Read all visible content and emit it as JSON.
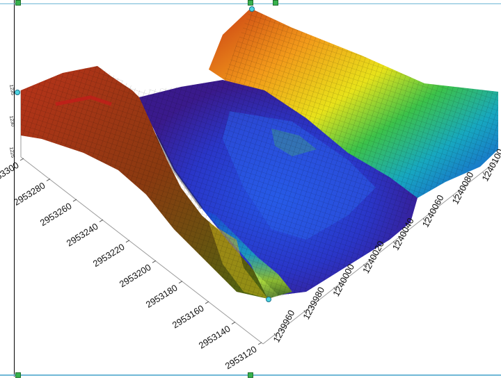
{
  "chart_data": {
    "type": "surface3d",
    "title": "",
    "xlabel": "",
    "ylabel": "",
    "zlabel": "",
    "x_ticks": [
      "1239960",
      "1239980",
      "1240000",
      "1240020",
      "1240040",
      "1240060",
      "1240080",
      "1240100"
    ],
    "y_ticks": [
      "2953120",
      "2953140",
      "2953160",
      "2953180",
      "2953200",
      "2953220",
      "2953240",
      "2953260",
      "2953280",
      "2953300"
    ],
    "z_ticks": [
      "1235",
      "1230",
      "1225"
    ],
    "colormap": [
      "#3a1a8c",
      "#2a3fd6",
      "#1a6fe0",
      "#17a7c0",
      "#3cc24a",
      "#b9e21a",
      "#f2e21a",
      "#f29a1a",
      "#e0501a",
      "#b8321a"
    ],
    "description_of_surface": "open-pit excavation: deep blue floor, rising walls through green/yellow to red rims"
  },
  "ui": {
    "selection_color": "#6fb7d6",
    "handle_color": "#37b24d"
  }
}
